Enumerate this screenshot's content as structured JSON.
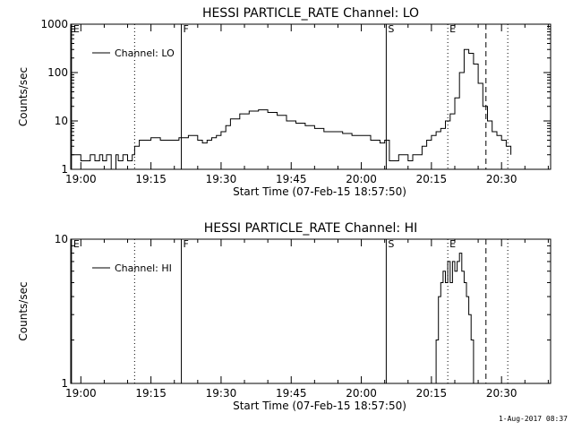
{
  "footer_date": "1-Aug-2017 08:37",
  "chart_data": [
    {
      "type": "line",
      "title": "HESSI PARTICLE_RATE Channel: LO",
      "xlabel": "Start Time (07-Feb-15 18:57:50)",
      "ylabel": "Counts/sec",
      "yscale": "log",
      "ylim": [
        1,
        1000
      ],
      "xlim": [
        "18:57:50",
        "20:40:30"
      ],
      "x_ticks": [
        "19:00",
        "19:15",
        "19:30",
        "19:45",
        "20:00",
        "20:15",
        "20:30"
      ],
      "y_ticks": [
        "1",
        "10",
        "100",
        "1000"
      ],
      "legend": {
        "label": "Channel: LO",
        "position": "top-left"
      },
      "markers": [
        {
          "label": "E",
          "time": "18:58:00",
          "style": "solid"
        },
        {
          "label": "",
          "time": "19:11:30",
          "style": "dotted"
        },
        {
          "label": "F",
          "time": "19:21:30",
          "style": "solid"
        },
        {
          "label": "S",
          "time": "20:05:20",
          "style": "solid"
        },
        {
          "label": "E",
          "time": "20:18:30",
          "style": "dotted"
        },
        {
          "label": "",
          "time": "20:26:40",
          "style": "dashed"
        },
        {
          "label": "",
          "time": "20:31:20",
          "style": "dotted"
        }
      ],
      "series": [
        {
          "x": [
            "18:58:00",
            "18:59:00",
            "19:00:00",
            "19:02:00",
            "19:03:00",
            "19:04:00",
            "19:04:40",
            "19:05:30",
            "19:06:30",
            "19:07:00",
            "19:07:30",
            "19:08:00",
            "19:09:00",
            "19:10:00",
            "19:11:00",
            "19:11:30",
            "19:12:30",
            "19:13:30",
            "19:15:00",
            "19:17:00",
            "19:19:00",
            "19:21:00",
            "19:22:00",
            "19:23:00",
            "19:24:00",
            "19:25:00",
            "19:26:00",
            "19:27:00",
            "19:28:00",
            "19:29:00",
            "19:30:00",
            "19:31:00",
            "19:32:00",
            "19:34:00",
            "19:36:00",
            "19:38:00",
            "19:40:00",
            "19:42:00",
            "19:44:00",
            "19:46:00",
            "19:48:00",
            "19:50:00",
            "19:52:00",
            "19:54:00",
            "19:56:00",
            "19:58:00",
            "20:00:00",
            "20:02:00",
            "20:04:00",
            "20:05:00",
            "20:06:00",
            "20:07:00",
            "20:08:00",
            "20:09:00",
            "20:10:00",
            "20:11:00",
            "20:12:00",
            "20:13:00",
            "20:14:00",
            "20:15:00",
            "20:16:00",
            "20:17:00",
            "20:18:00",
            "20:19:00",
            "20:20:00",
            "20:21:00",
            "20:22:00",
            "20:23:00",
            "20:24:00",
            "20:25:00",
            "20:26:00",
            "20:27:00",
            "20:28:00",
            "20:29:00",
            "20:30:00",
            "20:31:00",
            "20:32:00"
          ],
          "values": [
            2,
            2,
            1.5,
            2,
            1.5,
            2,
            1.5,
            2,
            1,
            1,
            2,
            1.5,
            2,
            1.5,
            2,
            3,
            4,
            4,
            4.5,
            4,
            4,
            4.5,
            4.5,
            5,
            5,
            4,
            3.5,
            4,
            4.5,
            5,
            6,
            8,
            11,
            14,
            16,
            17,
            15,
            13,
            10,
            9,
            8,
            7,
            6,
            6,
            5.5,
            5,
            5,
            4,
            3.5,
            4,
            1.5,
            1.5,
            2,
            2,
            1.5,
            2,
            2,
            3,
            4,
            5,
            6,
            7,
            10,
            14,
            30,
            100,
            300,
            250,
            150,
            60,
            20,
            10,
            6,
            5,
            4,
            3,
            2
          ]
        }
      ]
    },
    {
      "type": "line",
      "title": "HESSI PARTICLE_RATE Channel: HI",
      "xlabel": "Start Time (07-Feb-15 18:57:50)",
      "ylabel": "Counts/sec",
      "yscale": "log",
      "ylim": [
        1,
        10
      ],
      "xlim": [
        "18:57:50",
        "20:40:30"
      ],
      "x_ticks": [
        "19:00",
        "19:15",
        "19:30",
        "19:45",
        "20:00",
        "20:15",
        "20:30"
      ],
      "y_ticks": [
        "1",
        "10"
      ],
      "legend": {
        "label": "Channel: HI",
        "position": "top-left"
      },
      "markers": [
        {
          "label": "E",
          "time": "18:58:00",
          "style": "solid"
        },
        {
          "label": "",
          "time": "19:11:30",
          "style": "dotted"
        },
        {
          "label": "F",
          "time": "19:21:30",
          "style": "solid"
        },
        {
          "label": "S",
          "time": "20:05:20",
          "style": "solid"
        },
        {
          "label": "E",
          "time": "20:18:30",
          "style": "dotted"
        },
        {
          "label": "",
          "time": "20:26:40",
          "style": "dashed"
        },
        {
          "label": "",
          "time": "20:31:20",
          "style": "dotted"
        }
      ],
      "series": [
        {
          "x": [
            "20:15:30",
            "20:16:00",
            "20:16:30",
            "20:17:00",
            "20:17:30",
            "20:18:00",
            "20:18:30",
            "20:19:00",
            "20:19:30",
            "20:20:00",
            "20:20:30",
            "20:21:00",
            "20:21:30",
            "20:22:00",
            "20:22:30",
            "20:23:00",
            "20:23:30",
            "20:24:00"
          ],
          "values": [
            1,
            2,
            4,
            5,
            6,
            5,
            7,
            5,
            7,
            6,
            7,
            8,
            6,
            5,
            4,
            3,
            2,
            1
          ]
        }
      ]
    }
  ]
}
